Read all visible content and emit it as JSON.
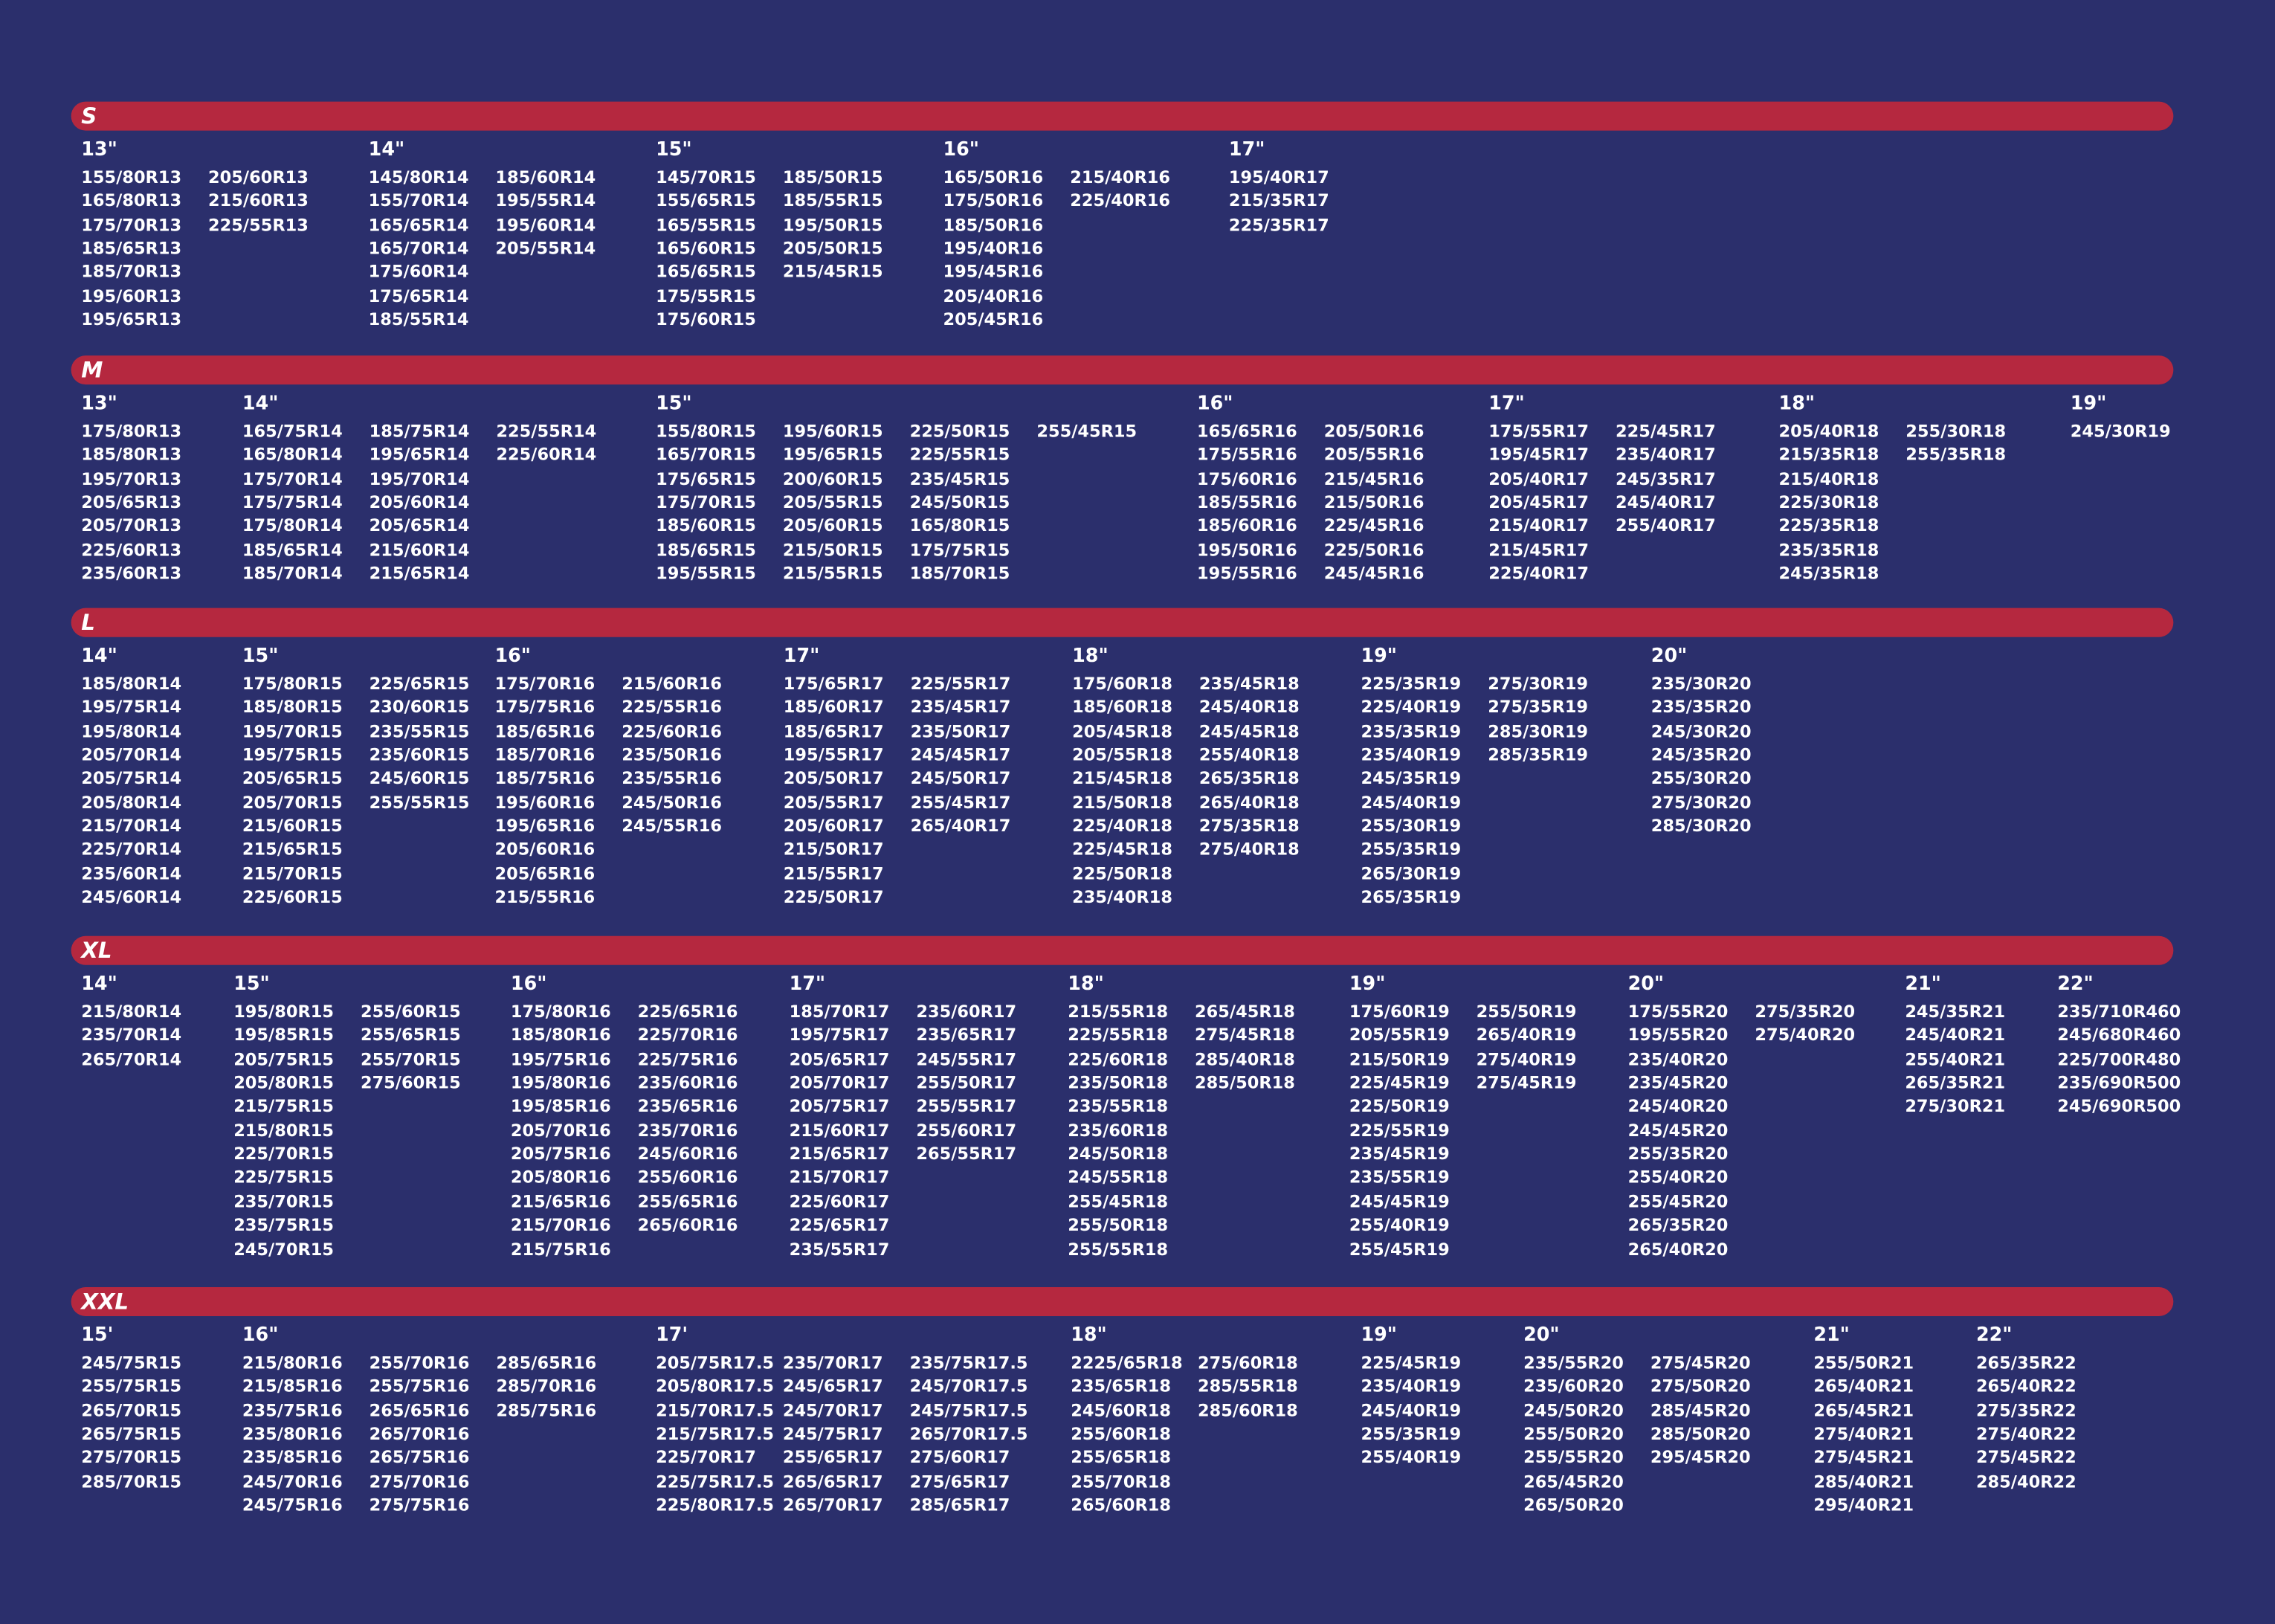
{
  "sections": [
    {
      "label": "S",
      "groups": [
        {
          "header": "13\"",
          "columns": [
            [
              "155/80R13",
              "165/80R13",
              "175/70R13",
              "185/65R13",
              "185/70R13",
              "195/60R13",
              "195/65R13"
            ],
            [
              "205/60R13",
              "215/60R13",
              "225/55R13"
            ]
          ]
        },
        {
          "header": "14\"",
          "columns": [
            [
              "145/80R14",
              "155/70R14",
              "165/65R14",
              "165/70R14",
              "175/60R14",
              "175/65R14",
              "185/55R14"
            ],
            [
              "185/60R14",
              "195/55R14",
              "195/60R14",
              "205/55R14"
            ]
          ]
        },
        {
          "header": "15\"",
          "columns": [
            [
              "145/70R15",
              "155/65R15",
              "165/55R15",
              "165/60R15",
              "165/65R15",
              "175/55R15",
              "175/60R15"
            ],
            [
              "185/50R15",
              "185/55R15",
              "195/50R15",
              "205/50R15",
              "215/45R15"
            ]
          ]
        },
        {
          "header": "16\"",
          "columns": [
            [
              "165/50R16",
              "175/50R16",
              "185/50R16",
              "195/40R16",
              "195/45R16",
              "205/40R16",
              "205/45R16"
            ],
            [
              "215/40R16",
              "225/40R16"
            ]
          ]
        },
        {
          "header": "17\"",
          "columns": [
            [
              "195/40R17",
              "215/35R17",
              "225/35R17"
            ]
          ]
        }
      ]
    },
    {
      "label": "M",
      "groups": [
        {
          "header": "13\"",
          "columns": [
            [
              "175/80R13",
              "185/80R13",
              "195/70R13",
              "205/65R13",
              "205/70R13",
              "225/60R13",
              "235/60R13"
            ]
          ]
        },
        {
          "header": "14\"",
          "columns": [
            [
              "165/75R14",
              "165/80R14",
              "175/70R14",
              "175/75R14",
              "175/80R14",
              "185/65R14",
              "185/70R14"
            ],
            [
              "185/75R14",
              "195/65R14",
              "195/70R14",
              "205/60R14",
              "205/65R14",
              "215/60R14",
              "215/65R14"
            ],
            [
              "225/55R14",
              "225/60R14"
            ]
          ]
        },
        {
          "header": "15\"",
          "columns": [
            [
              "155/80R15",
              "165/70R15",
              "175/65R15",
              "175/70R15",
              "185/60R15",
              "185/65R15",
              "195/55R15"
            ],
            [
              "195/60R15",
              "195/65R15",
              "200/60R15",
              "205/55R15",
              "205/60R15",
              "215/50R15",
              "215/55R15"
            ],
            [
              "225/50R15",
              "225/55R15",
              "235/45R15",
              "245/50R15",
              "165/80R15",
              "175/75R15",
              "185/70R15"
            ],
            [
              "255/45R15"
            ]
          ]
        },
        {
          "header": "16\"",
          "columns": [
            [
              "165/65R16",
              "175/55R16",
              "175/60R16",
              "185/55R16",
              "185/60R16",
              "195/50R16",
              "195/55R16"
            ],
            [
              "205/50R16",
              "205/55R16",
              "215/45R16",
              "215/50R16",
              "225/45R16",
              "225/50R16",
              "245/45R16"
            ]
          ]
        },
        {
          "header": "17\"",
          "columns": [
            [
              "175/55R17",
              "195/45R17",
              "205/40R17",
              "205/45R17",
              "215/40R17",
              "215/45R17",
              "225/40R17"
            ],
            [
              "225/45R17",
              "235/40R17",
              "245/35R17",
              "245/40R17",
              "255/40R17"
            ]
          ]
        },
        {
          "header": "18\"",
          "columns": [
            [
              "205/40R18",
              "215/35R18",
              "215/40R18",
              "225/30R18",
              "225/35R18",
              "235/35R18",
              "245/35R18"
            ],
            [
              "255/30R18",
              "255/35R18"
            ]
          ]
        },
        {
          "header": "19\"",
          "columns": [
            [
              "245/30R19"
            ]
          ]
        }
      ]
    },
    {
      "label": "L",
      "groups": [
        {
          "header": "14\"",
          "columns": [
            [
              "185/80R14",
              "195/75R14",
              "195/80R14",
              "205/70R14",
              "205/75R14",
              "205/80R14",
              "215/70R14",
              "225/70R14",
              "235/60R14",
              "245/60R14"
            ]
          ]
        },
        {
          "header": "15\"",
          "columns": [
            [
              "175/80R15",
              "185/80R15",
              "195/70R15",
              "195/75R15",
              "205/65R15",
              "205/70R15",
              "215/60R15",
              "215/65R15",
              "215/70R15",
              "225/60R15"
            ],
            [
              "225/65R15",
              "230/60R15",
              "235/55R15",
              "235/60R15",
              "245/60R15",
              "255/55R15"
            ]
          ]
        },
        {
          "header": "16\"",
          "columns": [
            [
              "175/70R16",
              "175/75R16",
              "185/65R16",
              "185/70R16",
              "185/75R16",
              "195/60R16",
              "195/65R16",
              "205/60R16",
              "205/65R16",
              "215/55R16"
            ],
            [
              "215/60R16",
              "225/55R16",
              "225/60R16",
              "235/50R16",
              "235/55R16",
              "245/50R16",
              "245/55R16"
            ]
          ]
        },
        {
          "header": "17\"",
          "columns": [
            [
              "175/65R17",
              "185/60R17",
              "185/65R17",
              "195/55R17",
              "205/50R17",
              "205/55R17",
              "205/60R17",
              "215/50R17",
              "215/55R17",
              "225/50R17"
            ],
            [
              "225/55R17",
              "235/45R17",
              "235/50R17",
              "245/45R17",
              "245/50R17",
              "255/45R17",
              "265/40R17"
            ]
          ]
        },
        {
          "header": "18\"",
          "columns": [
            [
              "175/60R18",
              "185/60R18",
              "205/45R18",
              "205/55R18",
              "215/45R18",
              "215/50R18",
              "225/40R18",
              "225/45R18",
              "225/50R18",
              "235/40R18"
            ],
            [
              "235/45R18",
              "245/40R18",
              "245/45R18",
              "255/40R18",
              "265/35R18",
              "265/40R18",
              "275/35R18",
              "275/40R18"
            ]
          ]
        },
        {
          "header": "19\"",
          "columns": [
            [
              "225/35R19",
              "225/40R19",
              "235/35R19",
              "235/40R19",
              "245/35R19",
              "245/40R19",
              "255/30R19",
              "255/35R19",
              "265/30R19",
              "265/35R19"
            ],
            [
              "275/30R19",
              "275/35R19",
              "285/30R19",
              "285/35R19"
            ]
          ]
        },
        {
          "header": "20\"",
          "columns": [
            [
              "235/30R20",
              "235/35R20",
              "245/30R20",
              "245/35R20",
              "255/30R20",
              "275/30R20",
              "285/30R20"
            ]
          ]
        }
      ]
    },
    {
      "label": "XL",
      "groups": [
        {
          "header": "14\"",
          "columns": [
            [
              "215/80R14",
              "235/70R14",
              "265/70R14"
            ]
          ]
        },
        {
          "header": "15\"",
          "columns": [
            [
              "195/80R15",
              "195/85R15",
              "205/75R15",
              "205/80R15",
              "215/75R15",
              "215/80R15",
              "225/70R15",
              "225/75R15",
              "235/70R15",
              "235/75R15",
              "245/70R15"
            ],
            [
              "255/60R15",
              "255/65R15",
              "255/70R15",
              "275/60R15"
            ]
          ]
        },
        {
          "header": "16\"",
          "columns": [
            [
              "175/80R16",
              "185/80R16",
              "195/75R16",
              "195/80R16",
              "195/85R16",
              "205/70R16",
              "205/75R16",
              "205/80R16",
              "215/65R16",
              "215/70R16",
              "215/75R16"
            ],
            [
              "225/65R16",
              "225/70R16",
              "225/75R16",
              "235/60R16",
              "235/65R16",
              "235/70R16",
              "245/60R16",
              "255/60R16",
              "255/65R16",
              "265/60R16"
            ]
          ]
        },
        {
          "header": "17\"",
          "columns": [
            [
              "185/70R17",
              "195/75R17",
              "205/65R17",
              "205/70R17",
              "205/75R17",
              "215/60R17",
              "215/65R17",
              "215/70R17",
              "225/60R17",
              "225/65R17",
              "235/55R17"
            ],
            [
              "235/60R17",
              "235/65R17",
              "245/55R17",
              "255/50R17",
              "255/55R17",
              "255/60R17",
              "265/55R17"
            ]
          ]
        },
        {
          "header": "18\"",
          "columns": [
            [
              "215/55R18",
              "225/55R18",
              "225/60R18",
              "235/50R18",
              "235/55R18",
              "235/60R18",
              "245/50R18",
              "245/55R18",
              "255/45R18",
              "255/50R18",
              "255/55R18"
            ],
            [
              "265/45R18",
              "275/45R18",
              "285/40R18",
              "285/50R18"
            ]
          ]
        },
        {
          "header": "19\"",
          "columns": [
            [
              "175/60R19",
              "205/55R19",
              "215/50R19",
              "225/45R19",
              "225/50R19",
              "225/55R19",
              "235/45R19",
              "235/55R19",
              "245/45R19",
              "255/40R19",
              "255/45R19"
            ],
            [
              "255/50R19",
              "265/40R19",
              "275/40R19",
              "275/45R19"
            ]
          ]
        },
        {
          "header": "20\"",
          "columns": [
            [
              "175/55R20",
              "195/55R20",
              "235/40R20",
              "235/45R20",
              "245/40R20",
              "245/45R20",
              "255/35R20",
              "255/40R20",
              "255/45R20",
              "265/35R20",
              "265/40R20"
            ],
            [
              "275/35R20",
              "275/40R20"
            ]
          ]
        },
        {
          "header": "21\"",
          "columns": [
            [
              "245/35R21",
              "245/40R21",
              "255/40R21",
              "265/35R21",
              "275/30R21"
            ]
          ]
        },
        {
          "header": "22\"",
          "columns": [
            [
              "235/710R460",
              "245/680R460",
              "225/700R480",
              "235/690R500",
              "245/690R500"
            ]
          ]
        }
      ]
    },
    {
      "label": "XXL",
      "groups": [
        {
          "header": "15'",
          "columns": [
            [
              "245/75R15",
              "255/75R15",
              "265/70R15",
              "265/75R15",
              "275/70R15",
              "285/70R15"
            ]
          ]
        },
        {
          "header": "16\"",
          "columns": [
            [
              "215/80R16",
              "215/85R16",
              "235/75R16",
              "235/80R16",
              "235/85R16",
              "245/70R16",
              "245/75R16"
            ],
            [
              "255/70R16",
              "255/75R16",
              "265/65R16",
              "265/70R16",
              "265/75R16",
              "275/70R16",
              "275/75R16"
            ],
            [
              "285/65R16",
              "285/70R16",
              "285/75R16"
            ]
          ]
        },
        {
          "header": "17'",
          "columns": [
            [
              "205/75R17.5",
              "205/80R17.5",
              "215/70R17.5",
              "215/75R17.5",
              "225/70R17",
              "225/75R17.5",
              "225/80R17.5"
            ],
            [
              "235/70R17",
              "245/65R17",
              "245/70R17",
              "245/75R17",
              "255/65R17",
              "265/65R17",
              "265/70R17"
            ],
            [
              "235/75R17.5",
              "245/70R17.5",
              "245/75R17.5",
              "265/70R17.5",
              "275/60R17",
              "275/65R17",
              "285/65R17"
            ]
          ]
        },
        {
          "header": "18\"",
          "columns": [
            [
              "2225/65R18",
              "235/65R18",
              "245/60R18",
              "255/60R18",
              "255/65R18",
              "255/70R18",
              "265/60R18"
            ],
            [
              "275/60R18",
              "285/55R18",
              "285/60R18"
            ]
          ]
        },
        {
          "header": "19\"",
          "columns": [
            [
              "225/45R19",
              "235/40R19",
              "245/40R19",
              "255/35R19",
              "255/40R19"
            ]
          ]
        },
        {
          "header": "20\"",
          "columns": [
            [
              "235/55R20",
              "235/60R20",
              "245/50R20",
              "255/50R20",
              "255/55R20",
              "265/45R20",
              "265/50R20"
            ],
            [
              "275/45R20",
              "275/50R20",
              "285/45R20",
              "285/50R20",
              "295/45R20"
            ]
          ]
        },
        {
          "header": "21\"",
          "columns": [
            [
              "255/50R21",
              "265/40R21",
              "265/45R21",
              "275/40R21",
              "275/45R21",
              "285/40R21",
              "295/40R21"
            ]
          ]
        },
        {
          "header": "22\"",
          "columns": [
            [
              "265/35R22",
              "265/40R22",
              "275/35R22",
              "275/40R22",
              "275/45R22",
              "285/40R22"
            ]
          ]
        }
      ]
    }
  ]
}
